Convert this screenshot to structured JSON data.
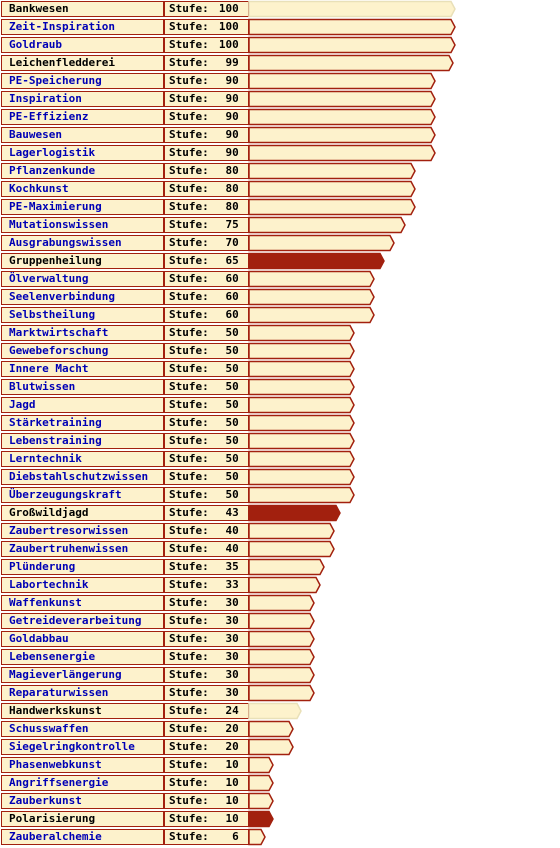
{
  "level_prefix": "Stufe:",
  "colors": {
    "bar_fill": "#fdf2cc",
    "bar_border": "#a2200e",
    "link": "#0000b5"
  },
  "skills": [
    {
      "name": "Bankwesen",
      "level": 100,
      "link": false,
      "style": "light"
    },
    {
      "name": "Zeit-Inspiration",
      "level": 100,
      "link": true,
      "style": "normal"
    },
    {
      "name": "Goldraub",
      "level": 100,
      "link": true,
      "style": "normal"
    },
    {
      "name": "Leichenfledderei",
      "level": 99,
      "link": false,
      "style": "normal"
    },
    {
      "name": "PE-Speicherung",
      "level": 90,
      "link": true,
      "style": "normal"
    },
    {
      "name": "Inspiration",
      "level": 90,
      "link": true,
      "style": "normal"
    },
    {
      "name": "PE-Effizienz",
      "level": 90,
      "link": true,
      "style": "normal"
    },
    {
      "name": "Bauwesen",
      "level": 90,
      "link": true,
      "style": "normal"
    },
    {
      "name": "Lagerlogistik",
      "level": 90,
      "link": true,
      "style": "normal"
    },
    {
      "name": "Pflanzenkunde",
      "level": 80,
      "link": true,
      "style": "normal"
    },
    {
      "name": "Kochkunst",
      "level": 80,
      "link": true,
      "style": "normal"
    },
    {
      "name": "PE-Maximierung",
      "level": 80,
      "link": true,
      "style": "normal"
    },
    {
      "name": "Mutationswissen",
      "level": 75,
      "link": true,
      "style": "normal"
    },
    {
      "name": "Ausgrabungswissen",
      "level": 70,
      "link": true,
      "style": "normal"
    },
    {
      "name": "Gruppenheilung",
      "level": 65,
      "link": false,
      "style": "dark"
    },
    {
      "name": "Ölverwaltung",
      "level": 60,
      "link": true,
      "style": "normal"
    },
    {
      "name": "Seelenverbindung",
      "level": 60,
      "link": true,
      "style": "normal"
    },
    {
      "name": "Selbstheilung",
      "level": 60,
      "link": true,
      "style": "normal"
    },
    {
      "name": "Marktwirtschaft",
      "level": 50,
      "link": true,
      "style": "normal"
    },
    {
      "name": "Gewebeforschung",
      "level": 50,
      "link": true,
      "style": "normal"
    },
    {
      "name": "Innere Macht",
      "level": 50,
      "link": true,
      "style": "normal"
    },
    {
      "name": "Blutwissen",
      "level": 50,
      "link": true,
      "style": "normal"
    },
    {
      "name": "Jagd",
      "level": 50,
      "link": true,
      "style": "normal"
    },
    {
      "name": "Stärketraining",
      "level": 50,
      "link": true,
      "style": "normal"
    },
    {
      "name": "Lebenstraining",
      "level": 50,
      "link": true,
      "style": "normal"
    },
    {
      "name": "Lerntechnik",
      "level": 50,
      "link": true,
      "style": "normal"
    },
    {
      "name": "Diebstahlschutzwissen",
      "level": 50,
      "link": true,
      "style": "normal"
    },
    {
      "name": "Überzeugungskraft",
      "level": 50,
      "link": true,
      "style": "normal"
    },
    {
      "name": "Großwildjagd",
      "level": 43,
      "link": false,
      "style": "dark"
    },
    {
      "name": "Zaubertresorwissen",
      "level": 40,
      "link": true,
      "style": "normal"
    },
    {
      "name": "Zaubertruhenwissen",
      "level": 40,
      "link": true,
      "style": "normal"
    },
    {
      "name": "Plünderung",
      "level": 35,
      "link": true,
      "style": "normal"
    },
    {
      "name": "Labortechnik",
      "level": 33,
      "link": true,
      "style": "normal"
    },
    {
      "name": "Waffenkunst",
      "level": 30,
      "link": true,
      "style": "normal"
    },
    {
      "name": "Getreideverarbeitung",
      "level": 30,
      "link": true,
      "style": "normal"
    },
    {
      "name": "Goldabbau",
      "level": 30,
      "link": true,
      "style": "normal"
    },
    {
      "name": "Lebensenergie",
      "level": 30,
      "link": true,
      "style": "normal"
    },
    {
      "name": "Magieverlängerung",
      "level": 30,
      "link": true,
      "style": "normal"
    },
    {
      "name": "Reparaturwissen",
      "level": 30,
      "link": true,
      "style": "normal"
    },
    {
      "name": "Handwerkskunst",
      "level": 24,
      "link": false,
      "style": "light"
    },
    {
      "name": "Schusswaffen",
      "level": 20,
      "link": true,
      "style": "normal"
    },
    {
      "name": "Siegelringkontrolle",
      "level": 20,
      "link": true,
      "style": "normal"
    },
    {
      "name": "Phasenwebkunst",
      "level": 10,
      "link": true,
      "style": "normal"
    },
    {
      "name": "Angriffsenergie",
      "level": 10,
      "link": true,
      "style": "normal"
    },
    {
      "name": "Zauberkunst",
      "level": 10,
      "link": true,
      "style": "normal"
    },
    {
      "name": "Polarisierung",
      "level": 10,
      "link": false,
      "style": "dark"
    },
    {
      "name": "Zauberalchemie",
      "level": 6,
      "link": true,
      "style": "normal"
    }
  ]
}
